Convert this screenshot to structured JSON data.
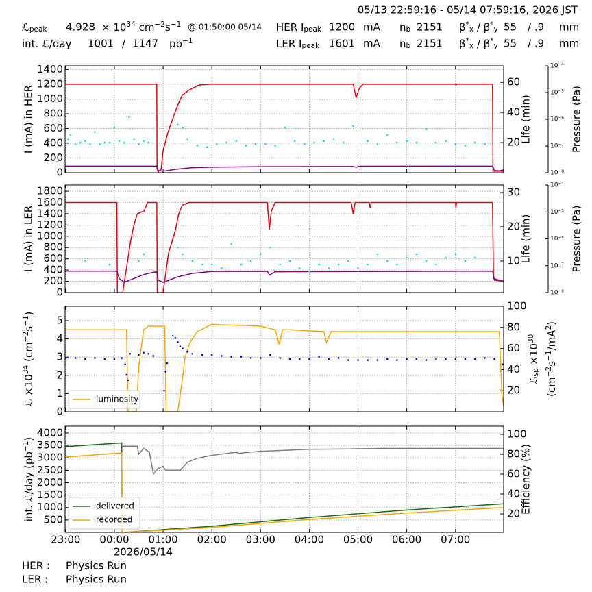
{
  "header": {
    "time_range": "05/13 22:59:16 - 05/14 07:59:16, 2026 JST",
    "rows": [
      [
        [
          {
            "text": "ℒ"
          },
          {
            "text": "peak",
            "pos": "sub"
          }
        ],
        4.928,
        [
          {
            "text": "× 10"
          },
          {
            "text": "34",
            "pos": "sup"
          },
          {
            "text": " cm"
          },
          {
            "text": "−2",
            "pos": "sup"
          },
          {
            "text": "s"
          },
          {
            "text": "−1",
            "pos": "sup"
          }
        ],
        "@ 01:50:00 05/14",
        [
          {
            "text": "HER I"
          },
          {
            "text": "peak",
            "pos": "sub"
          }
        ],
        1200,
        "mA",
        [
          {
            "text": "n"
          },
          {
            "text": "b",
            "pos": "sub"
          }
        ],
        2151,
        [
          {
            "text": "β"
          },
          {
            "text": "*",
            "pos": "sup"
          },
          {
            "text": "x",
            "pos": "sub"
          },
          {
            "text": " / β"
          },
          {
            "text": "*",
            "pos": "sup"
          },
          {
            "text": "y",
            "pos": "sub"
          }
        ],
        55,
        "/ .9",
        "mm"
      ],
      [
        [
          {
            "text": "int. ℒ/day"
          }
        ],
        1001,
        "/",
        1147,
        [
          {
            "text": "pb"
          },
          {
            "text": "−1",
            "pos": "sup"
          }
        ],
        [
          {
            "text": "LER I"
          },
          {
            "text": "peak",
            "pos": "sub"
          }
        ],
        1601,
        "mA",
        [
          {
            "text": "n"
          },
          {
            "text": "b",
            "pos": "sub"
          }
        ],
        2151,
        [
          {
            "text": "β"
          },
          {
            "text": "*",
            "pos": "sup"
          },
          {
            "text": "x",
            "pos": "sub"
          },
          {
            "text": " / β"
          },
          {
            "text": "*",
            "pos": "sup"
          },
          {
            "text": "y",
            "pos": "sub"
          }
        ],
        55,
        "/ .9",
        "mm"
      ]
    ]
  },
  "footer": {
    "rows": [
      [
        "HER :",
        "Physics Run"
      ],
      [
        "LER :",
        "Physics Run"
      ]
    ]
  },
  "chart_data": [
    {
      "type": "line",
      "grid": true,
      "xlim": [
        -0.012,
        8.988
      ],
      "xticks": [
        0,
        1,
        2,
        3,
        4,
        5,
        6,
        7,
        8
      ],
      "ylabel": "I (mA) in HER",
      "ylim": [
        0,
        1450
      ],
      "yticks": [
        0,
        200,
        400,
        600,
        800,
        1000,
        1200,
        1400
      ],
      "y2label": "Life (min)",
      "y2lim": [
        0,
        71
      ],
      "y2ticks": [
        20,
        40,
        60
      ],
      "y3label": "Pressure (Pa)",
      "y3lim": [
        1e-08,
        0.0001
      ],
      "y3log": true,
      "y3ticks": [
        {
          "value": 1e-08,
          "label": "10⁻⁸"
        },
        {
          "value": 1e-07,
          "label": "10⁻⁷"
        },
        {
          "value": 1e-06,
          "label": "10⁻⁶"
        },
        {
          "value": 1e-05,
          "label": "10⁻⁵"
        },
        {
          "value": 0.0001,
          "label": "10⁻⁴"
        }
      ],
      "series": [
        {
          "color": "#e8000b",
          "x": [
            -0.012,
            1.87,
            1.875,
            1.9,
            1.96,
            2.0,
            2.1,
            2.18,
            2.29,
            2.39,
            2.53,
            2.74,
            3.0,
            5.9,
            5.96,
            6.03,
            6.1,
            8.0,
            8.01,
            8.02,
            8.76,
            8.77,
            8.988
          ],
          "values": [
            1200,
            1200,
            50,
            10,
            50,
            300,
            550,
            700,
            900,
            1050,
            1120,
            1190,
            1200,
            1200,
            1020,
            1150,
            1200,
            1200,
            1180,
            1200,
            1200,
            20,
            20
          ]
        },
        {
          "color": "#800080",
          "x": [
            -0.012,
            1.87,
            1.9,
            2.0,
            2.3,
            2.6,
            3.0,
            4.0,
            5.9,
            5.96,
            6.05,
            8.76,
            8.8,
            8.9,
            8.988
          ],
          "values": [
            90,
            90,
            30,
            20,
            50,
            68,
            75,
            82,
            85,
            75,
            88,
            90,
            30,
            25,
            40
          ]
        },
        {
          "type": "scatter",
          "axis": "y2",
          "color": "#00e5ee",
          "x": [
            0.05,
            0.1,
            0.2,
            0.3,
            0.4,
            0.5,
            0.6,
            0.7,
            0.8,
            0.9,
            1.0,
            1.1,
            1.2,
            1.3,
            1.4,
            1.5,
            1.6,
            1.7,
            2.3,
            2.4,
            2.5,
            2.7,
            2.9,
            3.1,
            3.3,
            3.5,
            3.7,
            3.9,
            4.1,
            4.3,
            4.5,
            4.7,
            4.9,
            5.1,
            5.3,
            5.5,
            5.7,
            5.9,
            6.2,
            6.4,
            6.6,
            6.8,
            7.0,
            7.2,
            7.4,
            7.6,
            7.8,
            8.0,
            8.2,
            8.4,
            8.6
          ],
          "values": [
            22,
            25,
            19,
            20,
            21,
            19,
            27,
            19,
            20,
            20,
            30,
            21,
            20,
            37,
            22,
            19,
            21,
            20,
            32,
            30,
            22,
            18,
            17,
            19,
            20,
            21,
            18,
            19,
            19,
            18,
            30,
            21,
            19,
            20,
            21,
            22,
            20,
            31,
            21,
            19,
            25,
            20,
            21,
            20,
            29,
            20,
            21,
            19,
            18,
            20,
            19
          ]
        }
      ]
    },
    {
      "type": "line",
      "grid": true,
      "xlim": [
        -0.012,
        8.988
      ],
      "xticks": [
        0,
        1,
        2,
        3,
        4,
        5,
        6,
        7,
        8
      ],
      "ylabel": "I (mA) in LER",
      "ylim": [
        0,
        1910
      ],
      "yticks": [
        0,
        200,
        400,
        600,
        800,
        1000,
        1200,
        1400,
        1600,
        1800
      ],
      "y2label": "Life (min)",
      "y2lim": [
        0.8,
        32.2
      ],
      "y2ticks": [
        10,
        20,
        30
      ],
      "y3label": "Pressure (Pa)",
      "y3lim": [
        1e-08,
        0.0001
      ],
      "y3log": true,
      "y3ticks": [
        {
          "value": 1e-08,
          "label": "10⁻⁸"
        },
        {
          "value": 1e-07,
          "label": "10⁻⁷"
        },
        {
          "value": 1e-06,
          "label": "10⁻⁶"
        },
        {
          "value": 1e-05,
          "label": "10⁻⁵"
        },
        {
          "value": 0.0001,
          "label": "10⁻⁴"
        }
      ],
      "series": [
        {
          "color": "#e8000b",
          "x": [
            -0.012,
            1.05,
            1.06,
            1.17,
            1.26,
            1.33,
            1.4,
            1.47,
            1.61,
            1.68,
            1.87,
            1.88,
            2.0,
            2.11,
            2.25,
            2.32,
            2.39,
            2.53,
            4.14,
            4.18,
            4.22,
            4.3,
            5.86,
            5.9,
            5.94,
            6.23,
            6.25,
            6.27,
            8.0,
            8.01,
            8.02,
            8.76,
            8.78,
            8.988
          ],
          "values": [
            1600,
            1600,
            0,
            0,
            500,
            900,
            1200,
            1400,
            1450,
            1600,
            1600,
            0,
            0,
            700,
            1100,
            1400,
            1550,
            1600,
            1600,
            1120,
            1450,
            1600,
            1600,
            1400,
            1600,
            1600,
            1500,
            1600,
            1600,
            1500,
            1600,
            1600,
            250,
            200
          ]
        },
        {
          "color": "#800080",
          "x": [
            -0.012,
            1.05,
            1.1,
            1.2,
            1.4,
            1.6,
            1.8,
            1.87,
            1.9,
            2.0,
            2.3,
            2.6,
            3.0,
            4.14,
            4.18,
            4.3,
            8.76,
            8.8,
            8.988
          ],
          "values": [
            380,
            380,
            250,
            180,
            250,
            320,
            360,
            370,
            220,
            180,
            280,
            340,
            375,
            375,
            310,
            370,
            380,
            220,
            200
          ]
        },
        {
          "type": "scatter",
          "axis": "y2",
          "color": "#00e5ee",
          "x": [
            0.4,
            0.9,
            1.5,
            1.6,
            2.3,
            2.4,
            2.6,
            2.8,
            3.0,
            3.2,
            3.4,
            3.6,
            3.8,
            4.0,
            4.2,
            4.4,
            4.6,
            4.8,
            5.0,
            5.2,
            5.4,
            5.6,
            5.8,
            6.0,
            6.2,
            6.4,
            6.6,
            6.8,
            7.0,
            7.2,
            7.4,
            7.6,
            7.8,
            8.0,
            8.2,
            8.4
          ],
          "values": [
            10,
            9,
            10,
            12,
            14,
            12,
            10,
            9,
            9,
            8,
            15,
            9,
            10,
            12,
            14,
            9,
            10,
            8,
            7,
            9,
            8,
            9,
            10,
            8,
            9,
            12,
            10,
            9,
            11,
            12,
            10,
            9,
            11,
            12,
            10,
            11
          ]
        }
      ]
    },
    {
      "type": "line",
      "grid": true,
      "legend": "lower left",
      "xlim": [
        -0.012,
        8.988
      ],
      "xticks": [
        0,
        1,
        2,
        3,
        4,
        5,
        6,
        7,
        8
      ],
      "ylabel": [
        {
          "text": "ℒ ×10"
        },
        {
          "text": "34",
          "pos": "sup"
        },
        {
          "text": " (cm"
        },
        {
          "text": "−2",
          "pos": "sup"
        },
        {
          "text": "s"
        },
        {
          "text": "−1",
          "pos": "sup"
        },
        {
          "text": ")"
        }
      ],
      "ylim": [
        0,
        5.79
      ],
      "yticks": [
        0,
        1,
        2,
        3,
        4,
        5
      ],
      "y2label": [
        [
          {
            "text": "ℒ"
          },
          {
            "text": "sp",
            "pos": "sub"
          },
          {
            "text": " ×10"
          },
          {
            "text": "30",
            "pos": "sup"
          }
        ],
        [
          {
            "text": "(cm"
          },
          {
            "text": "−2",
            "pos": "sup"
          },
          {
            "text": "s"
          },
          {
            "text": "−1",
            "pos": "sup"
          },
          {
            "text": "/mA"
          },
          {
            "text": "2",
            "pos": "sup"
          },
          {
            "text": ")"
          }
        ]
      ],
      "y2lim": [
        0,
        100
      ],
      "y2ticks": [
        20,
        40,
        60,
        80,
        100
      ],
      "series": [
        {
          "name": "luminosity",
          "color": "#ffa500",
          "x": [
            -0.012,
            1.25,
            1.26,
            1.28,
            1.45,
            1.5,
            1.6,
            1.7,
            2.03,
            2.05,
            2.06,
            2.3,
            2.38,
            2.45,
            2.55,
            2.7,
            3.0,
            4.0,
            4.3,
            4.38,
            4.45,
            4.6,
            5.3,
            5.35,
            5.45,
            5.6,
            8.9,
            8.95,
            8.988
          ],
          "values": [
            4.5,
            4.5,
            3.0,
            0,
            0,
            2.5,
            4.5,
            4.7,
            4.7,
            2.0,
            0,
            0,
            1.5,
            3.0,
            3.8,
            4.4,
            4.8,
            4.7,
            4.5,
            3.7,
            4.5,
            4.5,
            4.4,
            3.8,
            4.4,
            4.4,
            4.4,
            1.0,
            0.3
          ]
        },
        {
          "type": "scatter",
          "axis": "y2",
          "color": "#0000ff",
          "x": [
            0,
            0.2,
            0.4,
            0.6,
            0.8,
            1.0,
            1.15,
            1.22,
            1.25,
            1.28,
            1.32,
            1.5,
            1.6,
            1.7,
            1.8,
            2.02,
            2.05,
            2.08,
            2.2,
            2.25,
            2.3,
            2.35,
            2.4,
            2.5,
            2.6,
            2.8,
            3.0,
            3.2,
            3.4,
            3.6,
            3.8,
            4.0,
            4.2,
            4.4,
            4.6,
            4.8,
            5.0,
            5.2,
            5.4,
            5.6,
            5.8,
            6.0,
            6.2,
            6.4,
            6.6,
            6.8,
            7.0,
            7.2,
            7.4,
            7.6,
            7.8,
            8.0,
            8.2,
            8.4,
            8.6,
            8.8,
            8.97
          ],
          "values": [
            51,
            51,
            50,
            51,
            50,
            50,
            51,
            45,
            35,
            30,
            55,
            54,
            56,
            55,
            53,
            20,
            38,
            46,
            72,
            70,
            66,
            62,
            60,
            57,
            55,
            54,
            54,
            53,
            52,
            52,
            51,
            51,
            54,
            51,
            50,
            50,
            50,
            52,
            50,
            51,
            49,
            49,
            49,
            49,
            50,
            49,
            50,
            50,
            49,
            50,
            50,
            50,
            50,
            50,
            51,
            50,
            45
          ]
        }
      ]
    },
    {
      "type": "line",
      "grid": true,
      "legend": "lower left",
      "xlim": [
        -0.012,
        8.988
      ],
      "xticks": [
        {
          "value": 0,
          "label": "23:00"
        },
        {
          "value": 1,
          "label": "00:00"
        },
        {
          "value": 2,
          "label": "01:00"
        },
        {
          "value": 3,
          "label": "02:00"
        },
        {
          "value": 4,
          "label": "03:00"
        },
        {
          "value": 5,
          "label": "04:00"
        },
        {
          "value": 6,
          "label": "05:00"
        },
        {
          "value": 7,
          "label": "06:00"
        },
        {
          "value": 8,
          "label": "07:00"
        }
      ],
      "annotation": "2026/05/14",
      "ylabel": [
        {
          "text": "int. ℒ/day (pb"
        },
        {
          "text": "−1",
          "pos": "sup"
        },
        {
          "text": ")"
        }
      ],
      "ylim": [
        0,
        4275
      ],
      "yticks": [
        500,
        1000,
        1500,
        2000,
        2500,
        3000,
        3500,
        4000
      ],
      "y2label": "Efficiency (%)",
      "y2lim": [
        1.4,
        108.3
      ],
      "y2ticks": [
        20,
        40,
        60,
        80,
        100
      ],
      "series": [
        {
          "name": "delivered",
          "color": "#1a6b1a",
          "x": [
            -0.012,
            1.15,
            1.16,
            1.2,
            3.0,
            5.0,
            7.0,
            8.988
          ],
          "values": [
            3450,
            3600,
            0,
            0,
            250,
            600,
            900,
            1150
          ]
        },
        {
          "name": "recorded",
          "color": "#ffa500",
          "x": [
            -0.012,
            1.15,
            1.16,
            1.2,
            3.0,
            5.0,
            7.0,
            8.988
          ],
          "values": [
            3030,
            3200,
            0,
            0,
            200,
            520,
            780,
            1000
          ]
        },
        {
          "axis": "y2",
          "color": "#808080",
          "x": [
            1.15,
            1.47,
            1.5,
            1.6,
            1.72,
            1.8,
            1.9,
            2.0,
            2.05,
            2.35,
            2.5,
            2.7,
            3.0,
            3.5,
            3.55,
            4.0,
            5.0,
            6.0,
            6.5,
            7.0,
            8.988
          ],
          "values": [
            88,
            88,
            80,
            86,
            82,
            60,
            66,
            68,
            64,
            64,
            72,
            76,
            79,
            82,
            81,
            83,
            85,
            85.5,
            86,
            86,
            86
          ]
        }
      ]
    }
  ]
}
